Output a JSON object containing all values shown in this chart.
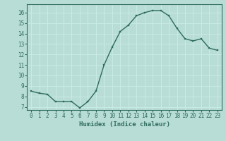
{
  "x": [
    0,
    1,
    2,
    3,
    4,
    5,
    6,
    7,
    8,
    9,
    10,
    11,
    12,
    13,
    14,
    15,
    16,
    17,
    18,
    19,
    20,
    21,
    22,
    23
  ],
  "y": [
    8.5,
    8.3,
    8.2,
    7.5,
    7.5,
    7.5,
    6.9,
    7.5,
    8.5,
    11.0,
    12.7,
    14.2,
    14.8,
    15.7,
    16.0,
    16.2,
    16.2,
    15.7,
    14.5,
    13.5,
    13.3,
    13.5,
    12.6,
    12.4
  ],
  "line_color": "#2e6b5e",
  "marker_color": "#2e6b5e",
  "bg_color": "#b8ddd6",
  "grid_color": "#c8eae4",
  "xlabel": "Humidex (Indice chaleur)",
  "xlim": [
    -0.5,
    23.5
  ],
  "ylim": [
    6.7,
    16.8
  ],
  "yticks": [
    7,
    8,
    9,
    10,
    11,
    12,
    13,
    14,
    15,
    16
  ],
  "xticks": [
    0,
    1,
    2,
    3,
    4,
    5,
    6,
    7,
    8,
    9,
    10,
    11,
    12,
    13,
    14,
    15,
    16,
    17,
    18,
    19,
    20,
    21,
    22,
    23
  ],
  "tick_color": "#2e6b5e",
  "label_fontsize": 6.5,
  "tick_fontsize": 5.5,
  "linewidth": 1.0,
  "markersize": 2.0
}
